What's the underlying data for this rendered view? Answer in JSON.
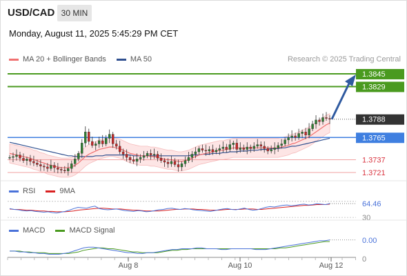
{
  "header": {
    "symbol": "USD/CAD",
    "timeframe": "30 MIN",
    "datetime": "Monday, August 11, 2025 5:45:29 PM CET"
  },
  "main_legend": {
    "ma20_label": "MA 20 + Bollinger Bands",
    "ma50_label": "MA 50",
    "credit": "Research © 2025 Trading Central"
  },
  "levels": {
    "r2": "1.3845",
    "r1": "1.3829",
    "last": "1.3788",
    "pivot": "1.3765",
    "s1": "1.3737",
    "s2": "1.3721"
  },
  "rsi_legend": {
    "rsi_label": "RSI",
    "ma_label": "9MA"
  },
  "rsi_axis": {
    "value": "64.46",
    "level": "30"
  },
  "macd_legend": {
    "macd_label": "MACD",
    "signal_label": "MACD Signal"
  },
  "macd_axis": {
    "value": "0.00",
    "zero": "0"
  },
  "x_axis": {
    "labels": [
      "Aug 8",
      "Aug 10",
      "Aug 12"
    ]
  },
  "colors": {
    "support": "#d9333f",
    "resistance": "#4a9a1f",
    "pivot": "#3f7fe0",
    "last": "#333333",
    "ma20": "#f07070",
    "ma50": "#2f4f8f",
    "band": "#fde0e0",
    "bull": "#2e7d32",
    "bear": "#c62828",
    "rsi": "#4a72d9",
    "rsi_ma": "#d92020",
    "macd": "#4a72d9",
    "signal": "#4a9a1f",
    "arrow": "#2f5aa0"
  },
  "chart_data": [
    {
      "type": "candlestick",
      "title": "USD/CAD",
      "subtitle": "30 MIN",
      "x_ticks": [
        "Aug 8",
        "Aug 10",
        "Aug 12"
      ],
      "horizontal_levels": [
        {
          "value": 1.3845,
          "kind": "resistance"
        },
        {
          "value": 1.3829,
          "kind": "resistance"
        },
        {
          "value": 1.3788,
          "kind": "last"
        },
        {
          "value": 1.3765,
          "kind": "pivot"
        },
        {
          "value": 1.3737,
          "kind": "support"
        },
        {
          "value": 1.3721,
          "kind": "support"
        }
      ],
      "close": [
        1.374,
        1.3741,
        1.3743,
        1.3739,
        1.3736,
        1.3738,
        1.3735,
        1.3733,
        1.3731,
        1.3729,
        1.3728,
        1.3726,
        1.373,
        1.3727,
        1.3725,
        1.3724,
        1.3723,
        1.3726,
        1.3732,
        1.3738,
        1.3745,
        1.3758,
        1.3772,
        1.376,
        1.3755,
        1.3757,
        1.3761,
        1.3757,
        1.3764,
        1.3769,
        1.3757,
        1.3754,
        1.3747,
        1.3744,
        1.374,
        1.3737,
        1.3735,
        1.3738,
        1.374,
        1.3742,
        1.3745,
        1.3743,
        1.3744,
        1.3739,
        1.3736,
        1.3734,
        1.3732,
        1.3735,
        1.3731,
        1.3728,
        1.3732,
        1.3736,
        1.374,
        1.3744,
        1.3747,
        1.3751,
        1.3749,
        1.3748,
        1.375,
        1.3747,
        1.3749,
        1.3751,
        1.3753,
        1.375,
        1.3756,
        1.3758,
        1.375,
        1.3752,
        1.375,
        1.3753,
        1.3751,
        1.3754,
        1.3756,
        1.3754,
        1.3751,
        1.3748,
        1.375,
        1.3752,
        1.3755,
        1.3757,
        1.3762,
        1.3765,
        1.3767,
        1.3765,
        1.377,
        1.3772,
        1.3768,
        1.3776,
        1.3782,
        1.3787,
        1.3785,
        1.379,
        1.3789,
        1.3788
      ],
      "ma20": [
        1.3745,
        1.3744,
        1.3743,
        1.3742,
        1.3741,
        1.374,
        1.3739,
        1.3737,
        1.3736,
        1.3734,
        1.3733,
        1.3731,
        1.373,
        1.3729,
        1.3728,
        1.3727,
        1.3727,
        1.3727,
        1.3728,
        1.373,
        1.3733,
        1.3737,
        1.3741,
        1.3744,
        1.3746,
        1.3748,
        1.375,
        1.3751,
        1.3752,
        1.3753,
        1.3753,
        1.3752,
        1.3751,
        1.3749,
        1.3747,
        1.3745,
        1.3744,
        1.3743,
        1.3742,
        1.3742,
        1.3742,
        1.3741,
        1.3741,
        1.374,
        1.3739,
        1.3738,
        1.3737,
        1.3737,
        1.3736,
        1.3735,
        1.3735,
        1.3736,
        1.3737,
        1.3739,
        1.3741,
        1.3743,
        1.3744,
        1.3745,
        1.3746,
        1.3747,
        1.3748,
        1.3749,
        1.3749,
        1.375,
        1.3751,
        1.3752,
        1.3752,
        1.3752,
        1.3752,
        1.3752,
        1.3752,
        1.3752,
        1.3752,
        1.3752,
        1.3752,
        1.3752,
        1.3752,
        1.3752,
        1.3752,
        1.3753,
        1.3754,
        1.3755,
        1.3757,
        1.3758,
        1.376,
        1.3762,
        1.3764,
        1.3766,
        1.3769,
        1.3772,
        1.3775,
        1.3778,
        1.3781,
        1.3783
      ],
      "ma50": [
        1.3759,
        1.3758,
        1.3757,
        1.3756,
        1.3755,
        1.3754,
        1.3753,
        1.3752,
        1.3751,
        1.375,
        1.3749,
        1.3748,
        1.3747,
        1.3746,
        1.3745,
        1.3744,
        1.3743,
        1.3742,
        1.3742,
        1.3741,
        1.3741,
        1.3741,
        1.3741,
        1.3741,
        1.3741,
        1.3742,
        1.3742,
        1.3742,
        1.3743,
        1.3743,
        1.3743,
        1.3743,
        1.3743,
        1.3743,
        1.3743,
        1.3743,
        1.3742,
        1.3742,
        1.3742,
        1.3742,
        1.3742,
        1.3742,
        1.3742,
        1.3742,
        1.3742,
        1.3742,
        1.3742,
        1.3742,
        1.3742,
        1.3742,
        1.3742,
        1.3742,
        1.3742,
        1.3743,
        1.3743,
        1.3743,
        1.3744,
        1.3744,
        1.3744,
        1.3745,
        1.3745,
        1.3745,
        1.3746,
        1.3746,
        1.3747,
        1.3747,
        1.3747,
        1.3748,
        1.3748,
        1.3748,
        1.3749,
        1.3749,
        1.3749,
        1.375,
        1.375,
        1.375,
        1.3751,
        1.3751,
        1.3751,
        1.3752,
        1.3752,
        1.3753,
        1.3754,
        1.3754,
        1.3755,
        1.3756,
        1.3757,
        1.3758,
        1.3759,
        1.376,
        1.3761,
        1.3762,
        1.3763,
        1.3764
      ],
      "band_width": 0.0012,
      "projection": {
        "from": 1.3788,
        "to": 1.3845
      }
    },
    {
      "type": "line",
      "title": "RSI",
      "series": [
        {
          "name": "RSI",
          "values": [
            52,
            50,
            49,
            47,
            46,
            47,
            45,
            44,
            43,
            44,
            42,
            41,
            43,
            45,
            48,
            52,
            55,
            54,
            53,
            56,
            58,
            52,
            50,
            49,
            50,
            51,
            49,
            47,
            46,
            45,
            47,
            46,
            44,
            45,
            47,
            49,
            50,
            52,
            53,
            51,
            50,
            52,
            51,
            49,
            48,
            47,
            46,
            45,
            47,
            49,
            51,
            52,
            50,
            49,
            51,
            53,
            50,
            48,
            49,
            52,
            55,
            57,
            56,
            58,
            60,
            61,
            59,
            60,
            62,
            63,
            61,
            62,
            64,
            63,
            62,
            64.46
          ]
        },
        {
          "name": "9MA",
          "values": [
            51,
            50,
            50,
            49,
            48,
            48,
            47,
            46,
            46,
            45,
            45,
            44,
            44,
            44,
            45,
            46,
            48,
            49,
            50,
            51,
            52,
            53,
            53,
            52,
            51,
            51,
            51,
            50,
            49,
            48,
            48,
            47,
            46,
            46,
            46,
            46,
            47,
            48,
            49,
            50,
            50,
            51,
            51,
            51,
            50,
            50,
            49,
            48,
            48,
            48,
            49,
            50,
            50,
            50,
            50,
            51,
            51,
            51,
            50,
            50,
            51,
            52,
            53,
            54,
            55,
            56,
            57,
            58,
            59,
            60,
            60,
            61,
            62,
            62,
            62,
            63
          ]
        }
      ],
      "ylim": [
        25,
        80
      ],
      "levels": [
        30
      ]
    },
    {
      "type": "line",
      "title": "MACD",
      "series": [
        {
          "name": "MACD",
          "values": [
            0.0001,
            0.0001,
            0.0,
            0.0,
            -0.0001,
            -0.0001,
            -0.0002,
            -0.0002,
            -0.0003,
            -0.0003,
            -0.0003,
            -0.0002,
            -0.0001,
            0.0001,
            0.0003,
            0.0005,
            0.0006,
            0.0006,
            0.0005,
            0.0004,
            0.0003,
            0.0002,
            0.0001,
            0.0,
            -0.0001,
            -0.0001,
            -0.0002,
            -0.0002,
            -0.0001,
            -0.0001,
            0.0,
            0.0001,
            0.0002,
            0.0003,
            0.0003,
            0.0004,
            0.0004,
            0.0004,
            0.0005,
            0.0005,
            0.0004,
            0.0004,
            0.0004,
            0.0003,
            0.0003,
            0.0004,
            0.0004,
            0.0004,
            0.0004,
            0.0004,
            0.0003,
            0.0003,
            0.0003,
            0.0004,
            0.0005,
            0.0006,
            0.0007,
            0.0008,
            0.0009,
            0.001,
            0.0011,
            0.0012,
            0.0013,
            0.0014,
            0.0014,
            0.0015
          ]
        },
        {
          "name": "MACD Signal",
          "values": [
            0.0001,
            0.0001,
            0.0001,
            0.0,
            0.0,
            -0.0001,
            -0.0001,
            -0.0001,
            -0.0002,
            -0.0002,
            -0.0002,
            -0.0002,
            -0.0002,
            -0.0001,
            0.0,
            0.0002,
            0.0003,
            0.0004,
            0.0005,
            0.0005,
            0.0004,
            0.0004,
            0.0003,
            0.0002,
            0.0001,
            0.0,
            0.0,
            -0.0001,
            -0.0001,
            -0.0001,
            -0.0001,
            0.0,
            0.0001,
            0.0002,
            0.0002,
            0.0003,
            0.0003,
            0.0004,
            0.0004,
            0.0004,
            0.0004,
            0.0004,
            0.0004,
            0.0004,
            0.0004,
            0.0004,
            0.0004,
            0.0004,
            0.0004,
            0.0004,
            0.0004,
            0.0004,
            0.0004,
            0.0004,
            0.0004,
            0.0005,
            0.0005,
            0.0006,
            0.0007,
            0.0008,
            0.0009,
            0.001,
            0.0011,
            0.0012,
            0.0013,
            0.0013
          ]
        }
      ],
      "ylim": [
        -0.0006,
        0.002
      ],
      "levels": [
        0
      ]
    }
  ]
}
